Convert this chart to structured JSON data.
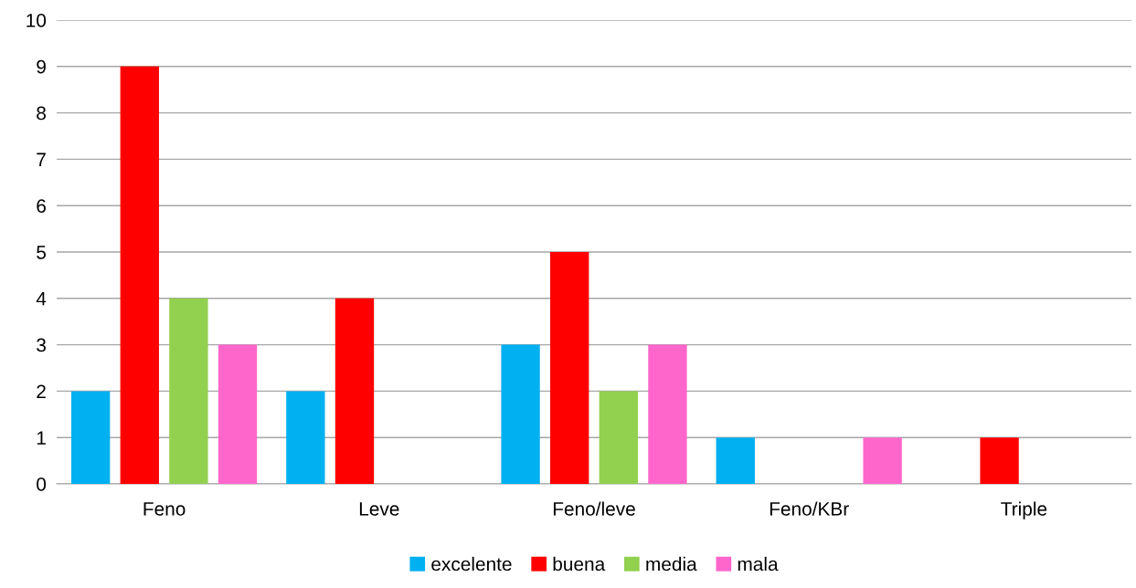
{
  "chart_data": {
    "type": "bar",
    "categories": [
      "Feno",
      "Leve",
      "Feno/leve",
      "Feno/KBr",
      "Triple"
    ],
    "series": [
      {
        "name": "excelente",
        "color": "#00b0f0",
        "values": [
          2,
          2,
          3,
          1,
          0
        ]
      },
      {
        "name": "buena",
        "color": "#ff0000",
        "values": [
          9,
          4,
          5,
          0,
          1
        ]
      },
      {
        "name": "media",
        "color": "#92d050",
        "values": [
          4,
          0,
          2,
          0,
          0
        ]
      },
      {
        "name": "mala",
        "color": "#ff66cc",
        "values": [
          3,
          0,
          3,
          1,
          0
        ]
      }
    ],
    "ylim": [
      0,
      10
    ],
    "yticks": [
      0,
      1,
      2,
      3,
      4,
      5,
      6,
      7,
      8,
      9,
      10
    ],
    "grid": "y",
    "legend": "bottom"
  }
}
